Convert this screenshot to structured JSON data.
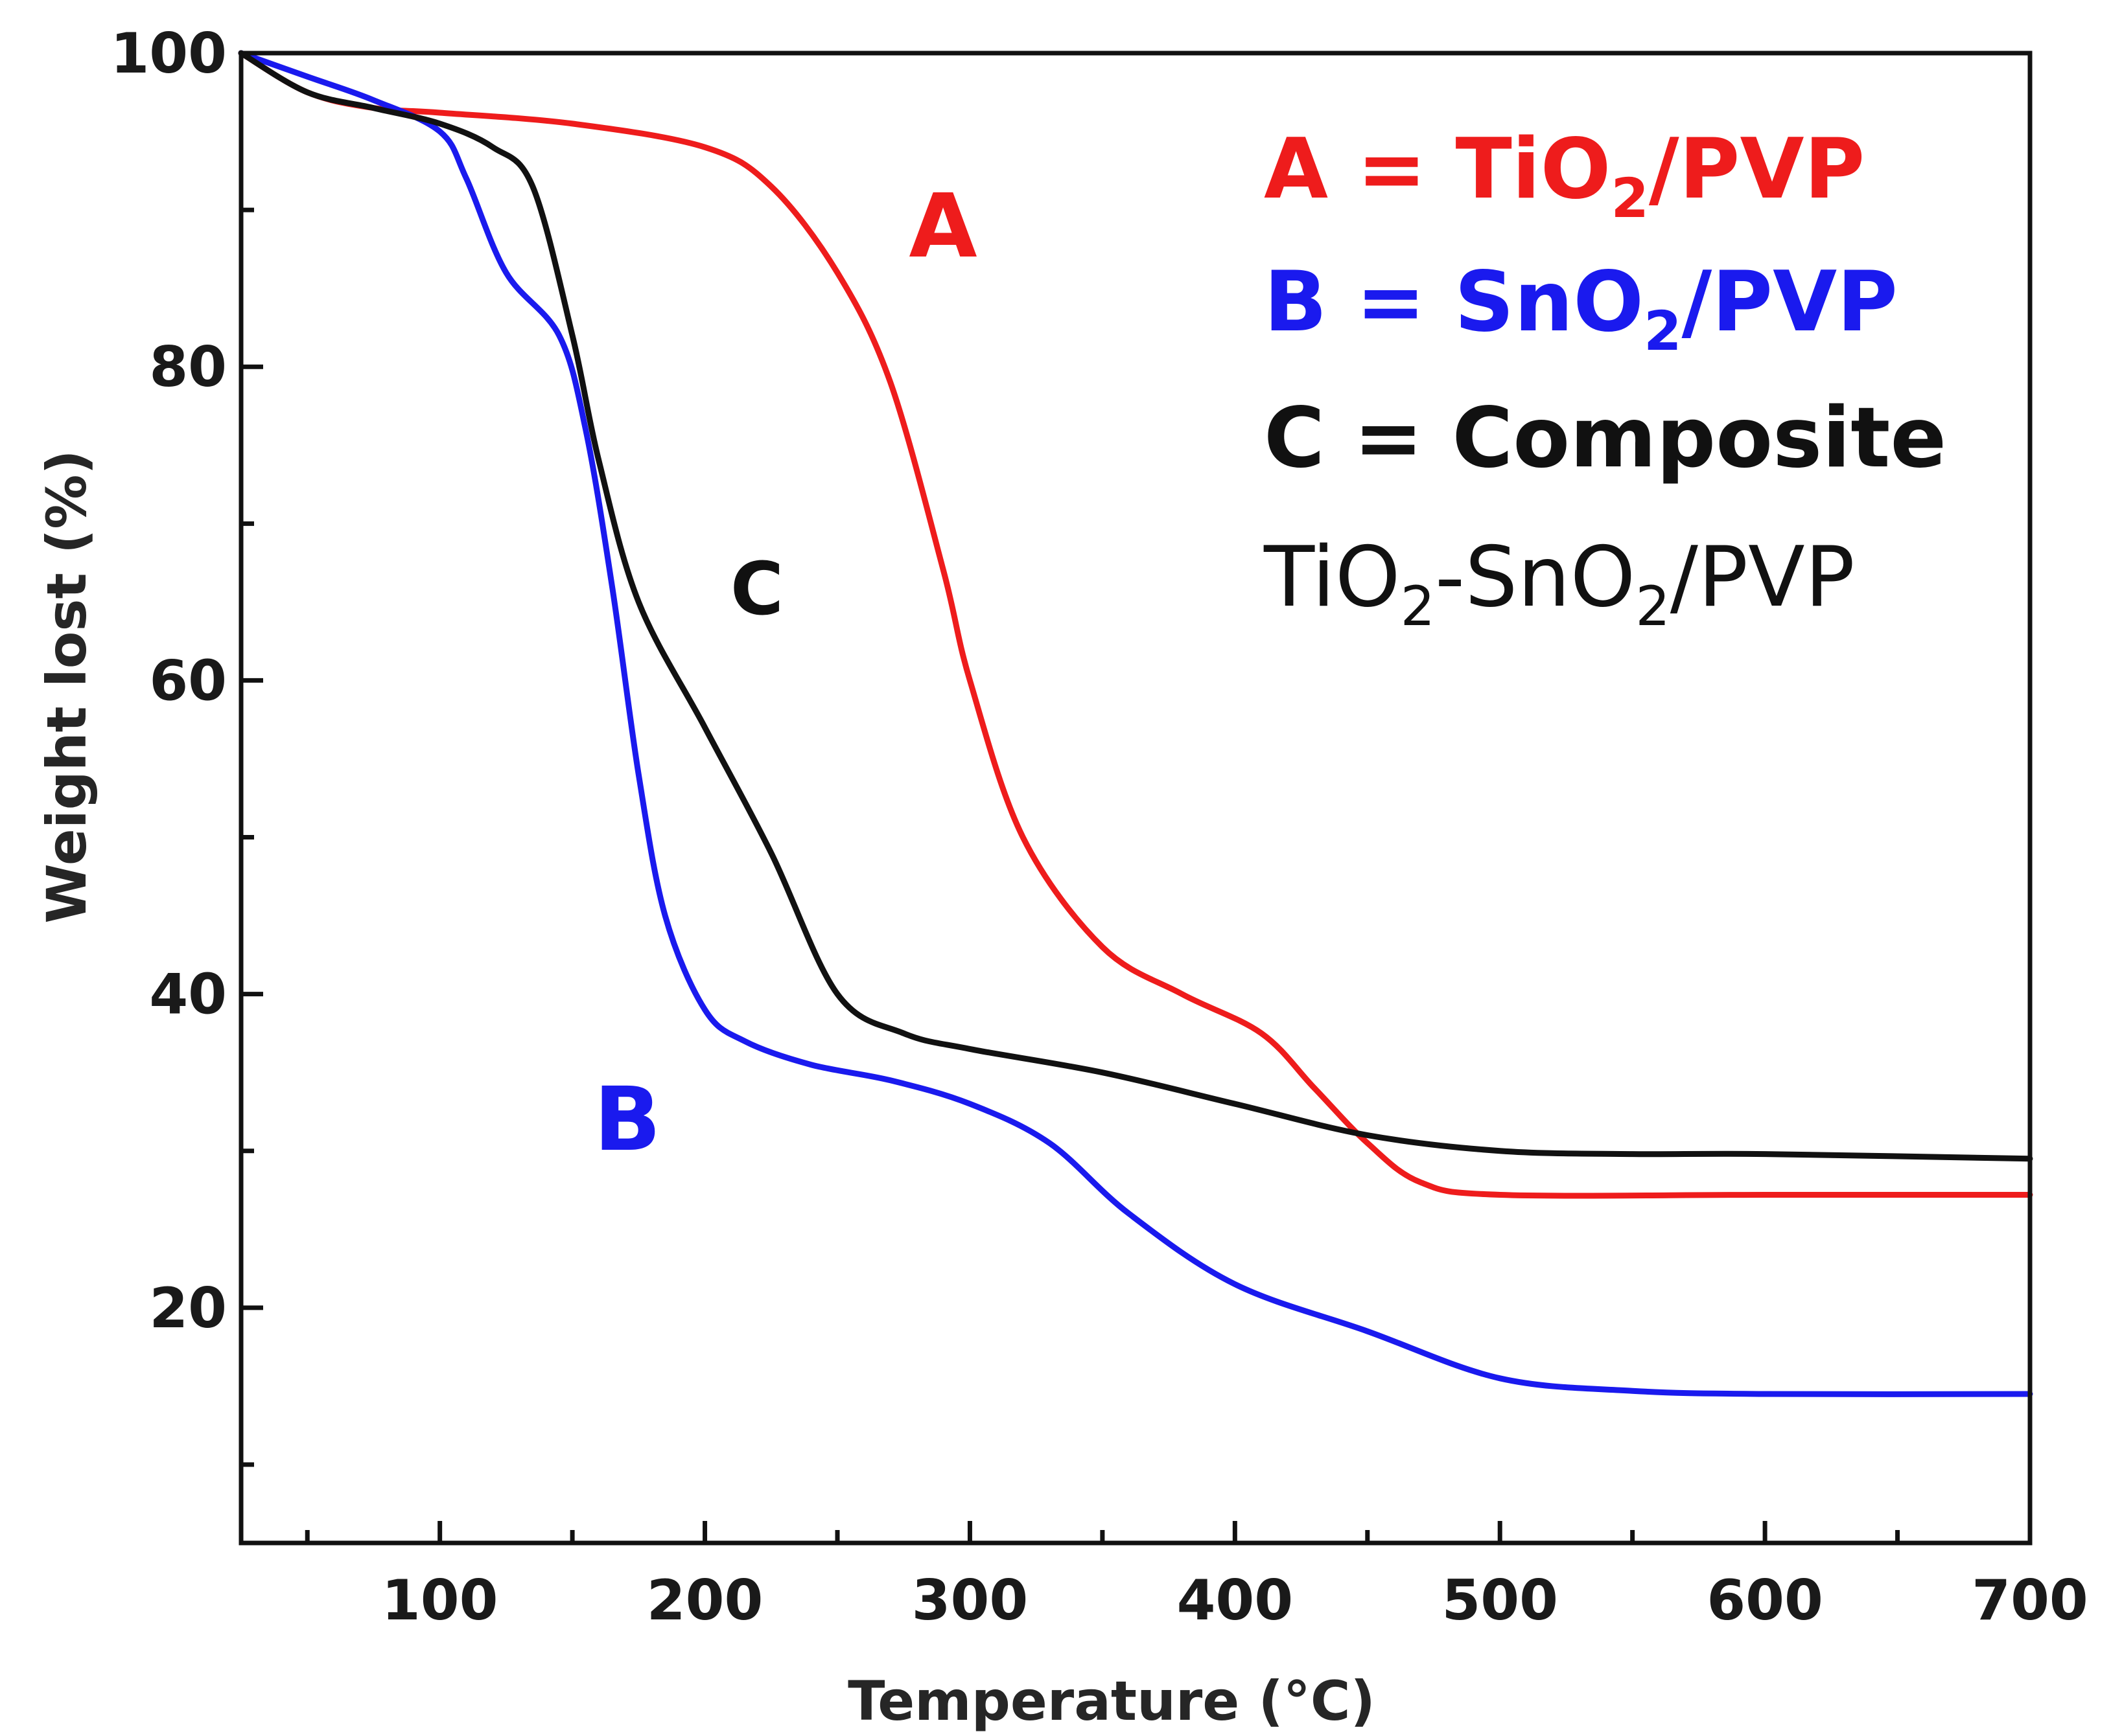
{
  "chart_data": {
    "type": "line",
    "xlabel": "Temperature (°C)",
    "ylabel": "Weight lost (%)",
    "xlim": [
      25,
      700
    ],
    "ylim": [
      5,
      100
    ],
    "x_ticks": [
      100,
      200,
      300,
      400,
      500,
      600,
      700
    ],
    "y_ticks": [
      20,
      40,
      60,
      80,
      100
    ],
    "x_tick_labels": [
      "100",
      "200",
      "300",
      "400",
      "500",
      "600",
      "700"
    ],
    "y_tick_labels": [
      "20",
      "40",
      "60",
      "80",
      "100"
    ],
    "grid": false,
    "legend_position": "top-right",
    "legend": [
      {
        "text": "A = TiO2/PVP",
        "color": "#ee1c1c"
      },
      {
        "text": "B = SnO2/PVP",
        "color": "#1a1aee"
      },
      {
        "text": "C = Composite",
        "color": "#111111"
      },
      {
        "text": "TiO2-SnO2/PVP",
        "color": "#111111"
      }
    ],
    "series": [
      {
        "name": "A",
        "label": "A",
        "color": "#ee1c1c",
        "x": [
          25,
          50,
          75,
          100,
          150,
          200,
          225,
          250,
          270,
          290,
          300,
          320,
          350,
          380,
          410,
          430,
          450,
          470,
          500,
          600,
          700
        ],
        "y": [
          100,
          97.5,
          96.5,
          96.2,
          95.5,
          94,
          91.5,
          86,
          79,
          67,
          60,
          50,
          43,
          40,
          37.5,
          34,
          30.5,
          28,
          27.2,
          27.2,
          27.2
        ]
      },
      {
        "name": "B",
        "label": "B",
        "color": "#1a1aee",
        "x": [
          25,
          50,
          75,
          100,
          110,
          125,
          145,
          155,
          165,
          175,
          185,
          200,
          215,
          240,
          270,
          300,
          330,
          360,
          400,
          450,
          500,
          550,
          600,
          700
        ],
        "y": [
          100,
          98.5,
          97,
          95,
          92,
          86,
          82,
          76,
          66,
          54,
          45,
          39,
          37,
          35.5,
          34.5,
          33,
          30.5,
          26,
          21.5,
          18.5,
          15.5,
          14.7,
          14.5,
          14.5
        ]
      },
      {
        "name": "C",
        "label": "C",
        "color": "#111111",
        "x": [
          25,
          50,
          75,
          100,
          120,
          135,
          150,
          160,
          175,
          200,
          225,
          250,
          275,
          300,
          350,
          400,
          450,
          500,
          550,
          600,
          700
        ],
        "y": [
          100,
          97.5,
          96.5,
          95.5,
          94,
          91.5,
          82,
          74,
          65,
          57,
          49,
          40,
          37.5,
          36.5,
          35,
          33,
          31,
          30,
          29.8,
          29.8,
          29.5
        ]
      }
    ]
  },
  "curve_labels": {
    "a": "A",
    "b": "B",
    "c": "C"
  },
  "legend_parts": {
    "a_prefix": "A = TiO",
    "a_sub": "2",
    "a_suffix": "/PVP",
    "b_prefix": "B = SnO",
    "b_sub": "2",
    "b_suffix": "/PVP",
    "c_line": "C = Composite",
    "d_part1": "TiO",
    "d_sub1": "2",
    "d_part2": "-SnO",
    "d_sub2": "2",
    "d_part3": "/PVP"
  },
  "axis_text": {
    "xlabel": "Temperature (°C)",
    "ylabel": "Weight lost (%)"
  },
  "colors": {
    "A": "#ee1c1c",
    "B": "#1a1aee",
    "C": "#111111",
    "axis": "#111111"
  }
}
